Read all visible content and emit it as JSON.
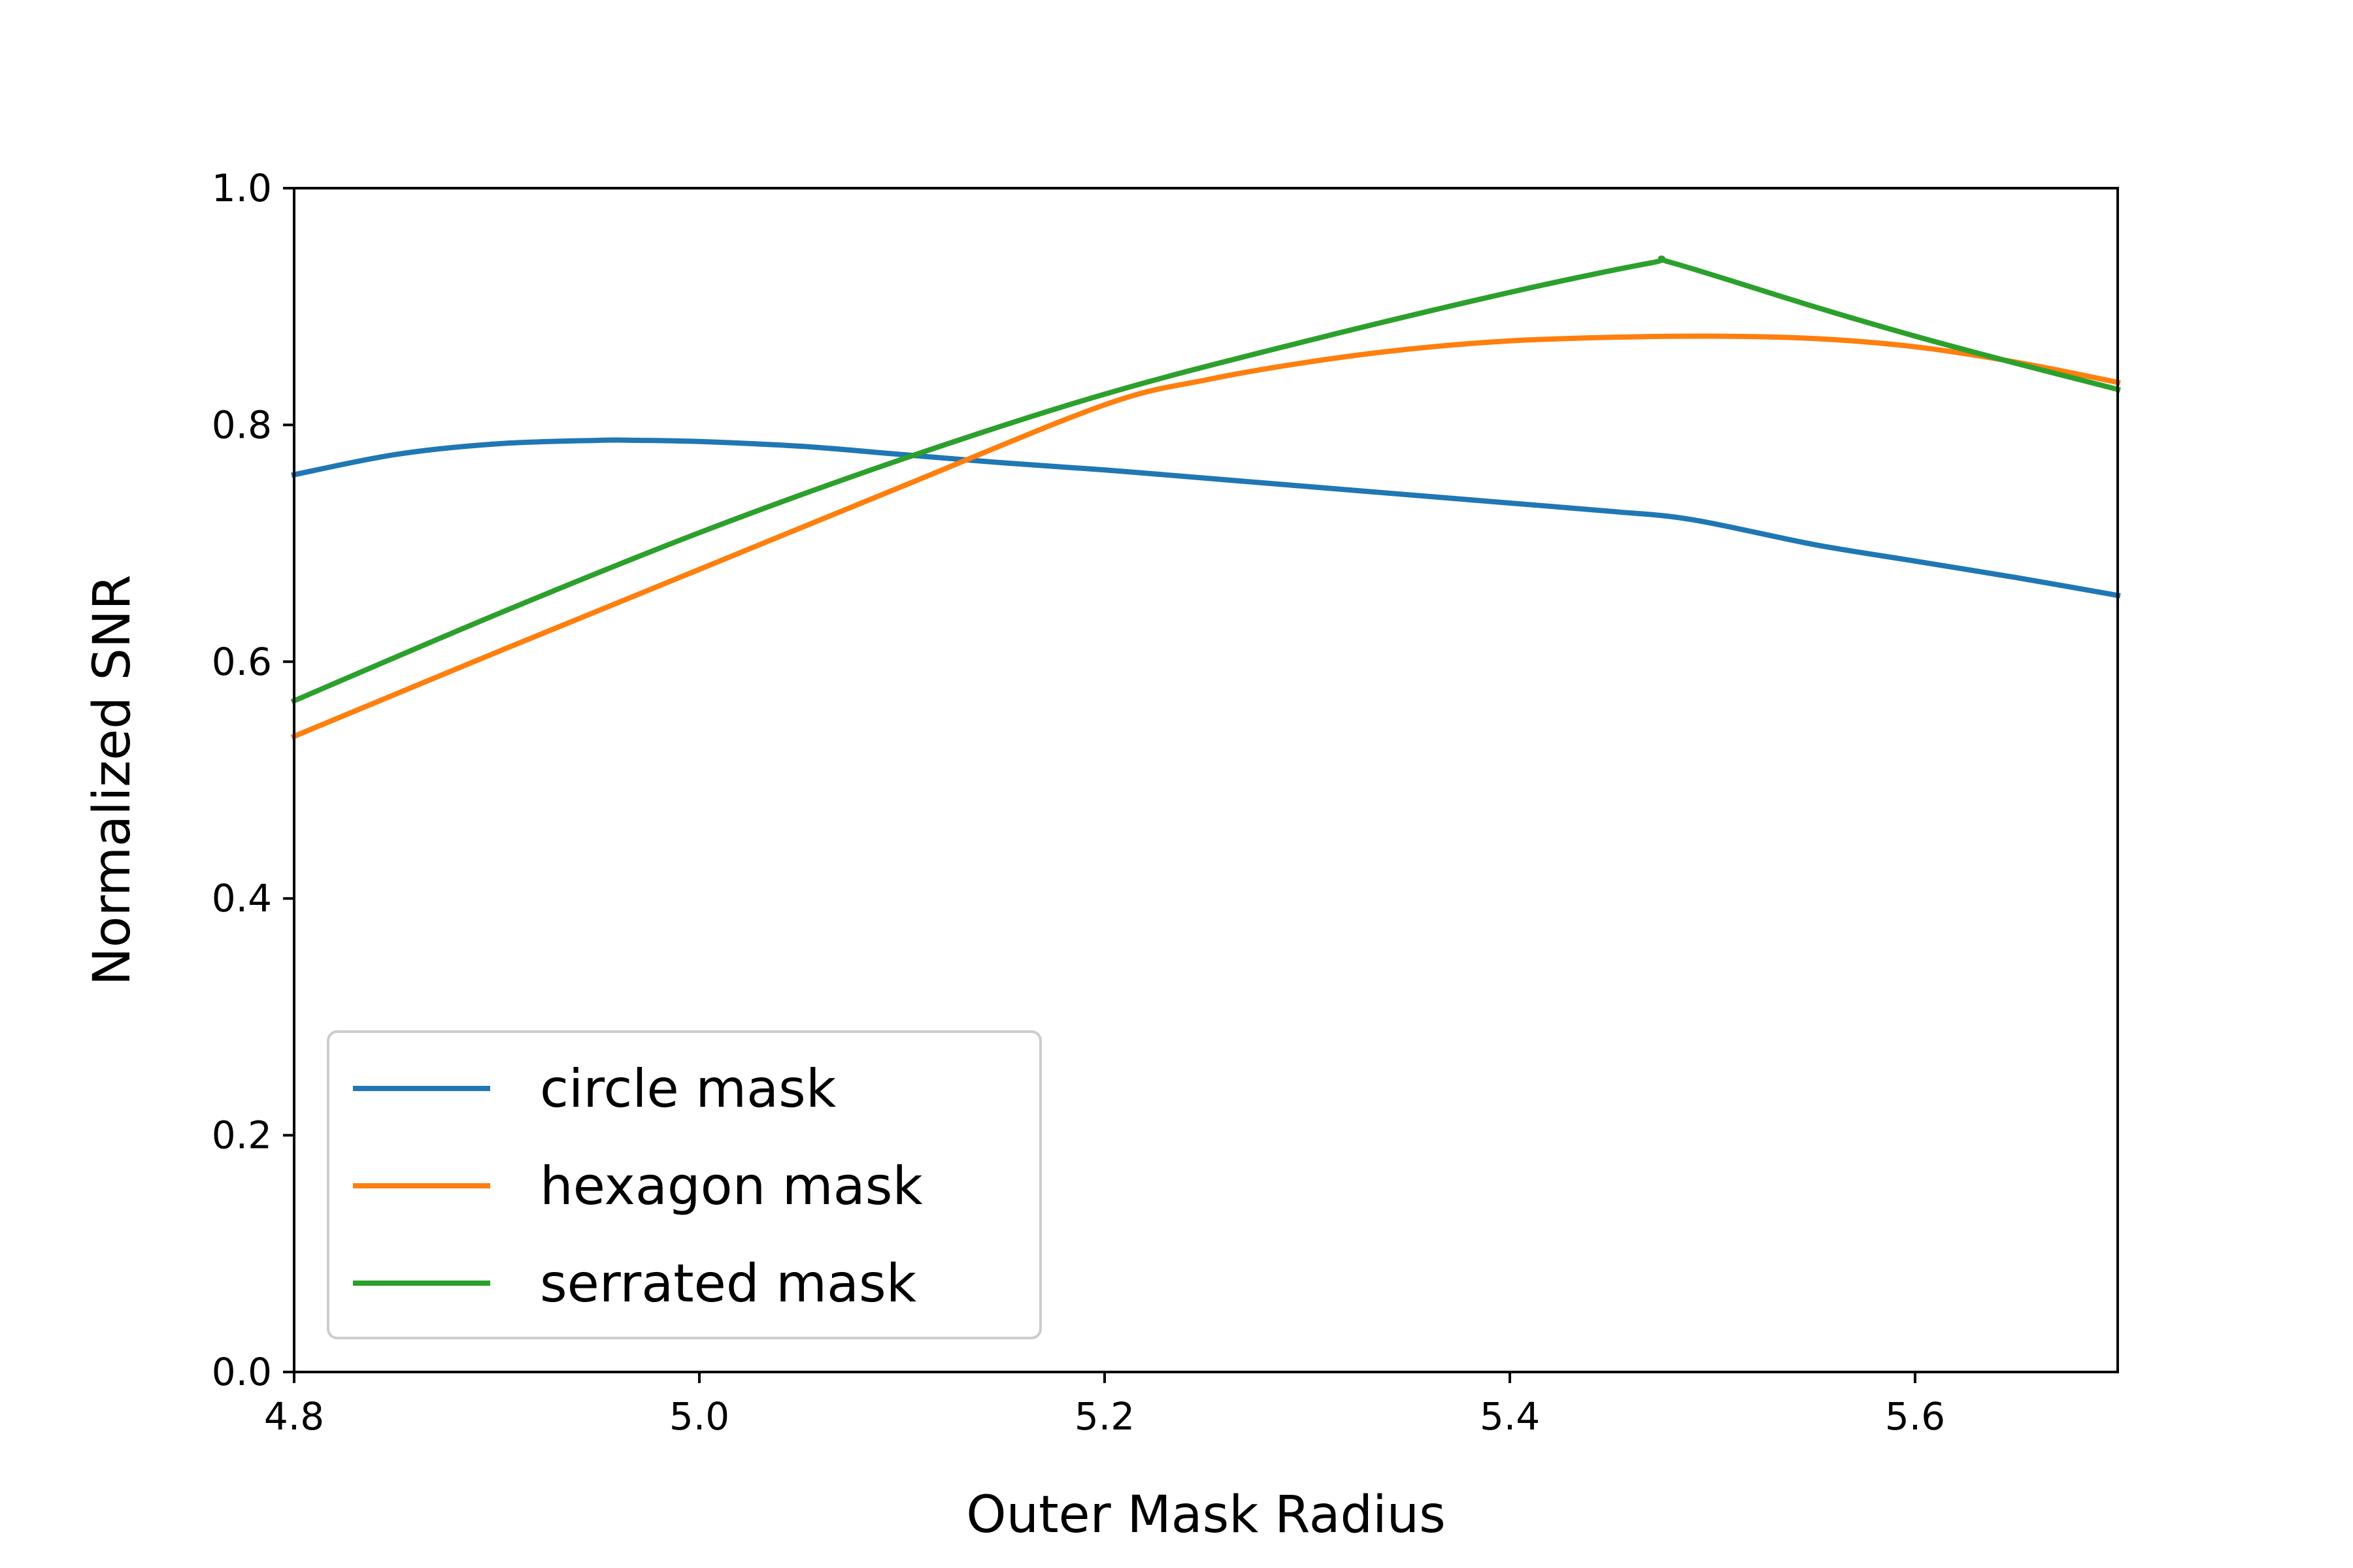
{
  "chart_data": {
    "type": "line",
    "xlabel": "Outer Mask Radius",
    "ylabel": "Normalized SNR",
    "xlim": [
      4.8,
      5.7
    ],
    "ylim": [
      0.0,
      1.0
    ],
    "xticks": [
      "4.8",
      "5.0",
      "5.2",
      "5.4",
      "5.6"
    ],
    "yticks": [
      "0.0",
      "0.2",
      "0.4",
      "0.6",
      "0.8",
      "1.0"
    ],
    "grid": false,
    "legend_position": "lower-left",
    "series": [
      {
        "name": "circle mask",
        "color": "#1f77b4",
        "x": [
          4.8,
          4.85,
          4.9,
          4.95,
          4.97,
          5.0,
          5.05,
          5.1,
          5.15,
          5.2,
          5.25,
          5.3,
          5.35,
          5.4,
          5.45,
          5.49,
          5.55,
          5.6,
          5.65,
          5.7
        ],
        "y": [
          0.758,
          0.775,
          0.784,
          0.787,
          0.787,
          0.786,
          0.782,
          0.775,
          0.768,
          0.762,
          0.755,
          0.748,
          0.741,
          0.734,
          0.727,
          0.72,
          0.699,
          0.685,
          0.671,
          0.656
        ]
      },
      {
        "name": "hexagon mask",
        "color": "#ff7f0e",
        "x": [
          4.8,
          4.9,
          5.0,
          5.1,
          5.2,
          5.25,
          5.3,
          5.35,
          5.4,
          5.45,
          5.5,
          5.55,
          5.6,
          5.65,
          5.7
        ],
        "y": [
          0.537,
          0.608,
          0.678,
          0.748,
          0.817,
          0.838,
          0.853,
          0.864,
          0.871,
          0.874,
          0.875,
          0.873,
          0.866,
          0.853,
          0.836
        ]
      },
      {
        "name": "serrated mask",
        "color": "#2ca02c",
        "x": [
          4.8,
          4.9,
          5.0,
          5.1,
          5.2,
          5.3,
          5.4,
          5.47,
          5.48,
          5.55,
          5.6,
          5.65,
          5.7
        ],
        "y": [
          0.567,
          0.64,
          0.709,
          0.771,
          0.826,
          0.871,
          0.912,
          0.937,
          0.937,
          0.9,
          0.875,
          0.852,
          0.83
        ]
      }
    ]
  }
}
